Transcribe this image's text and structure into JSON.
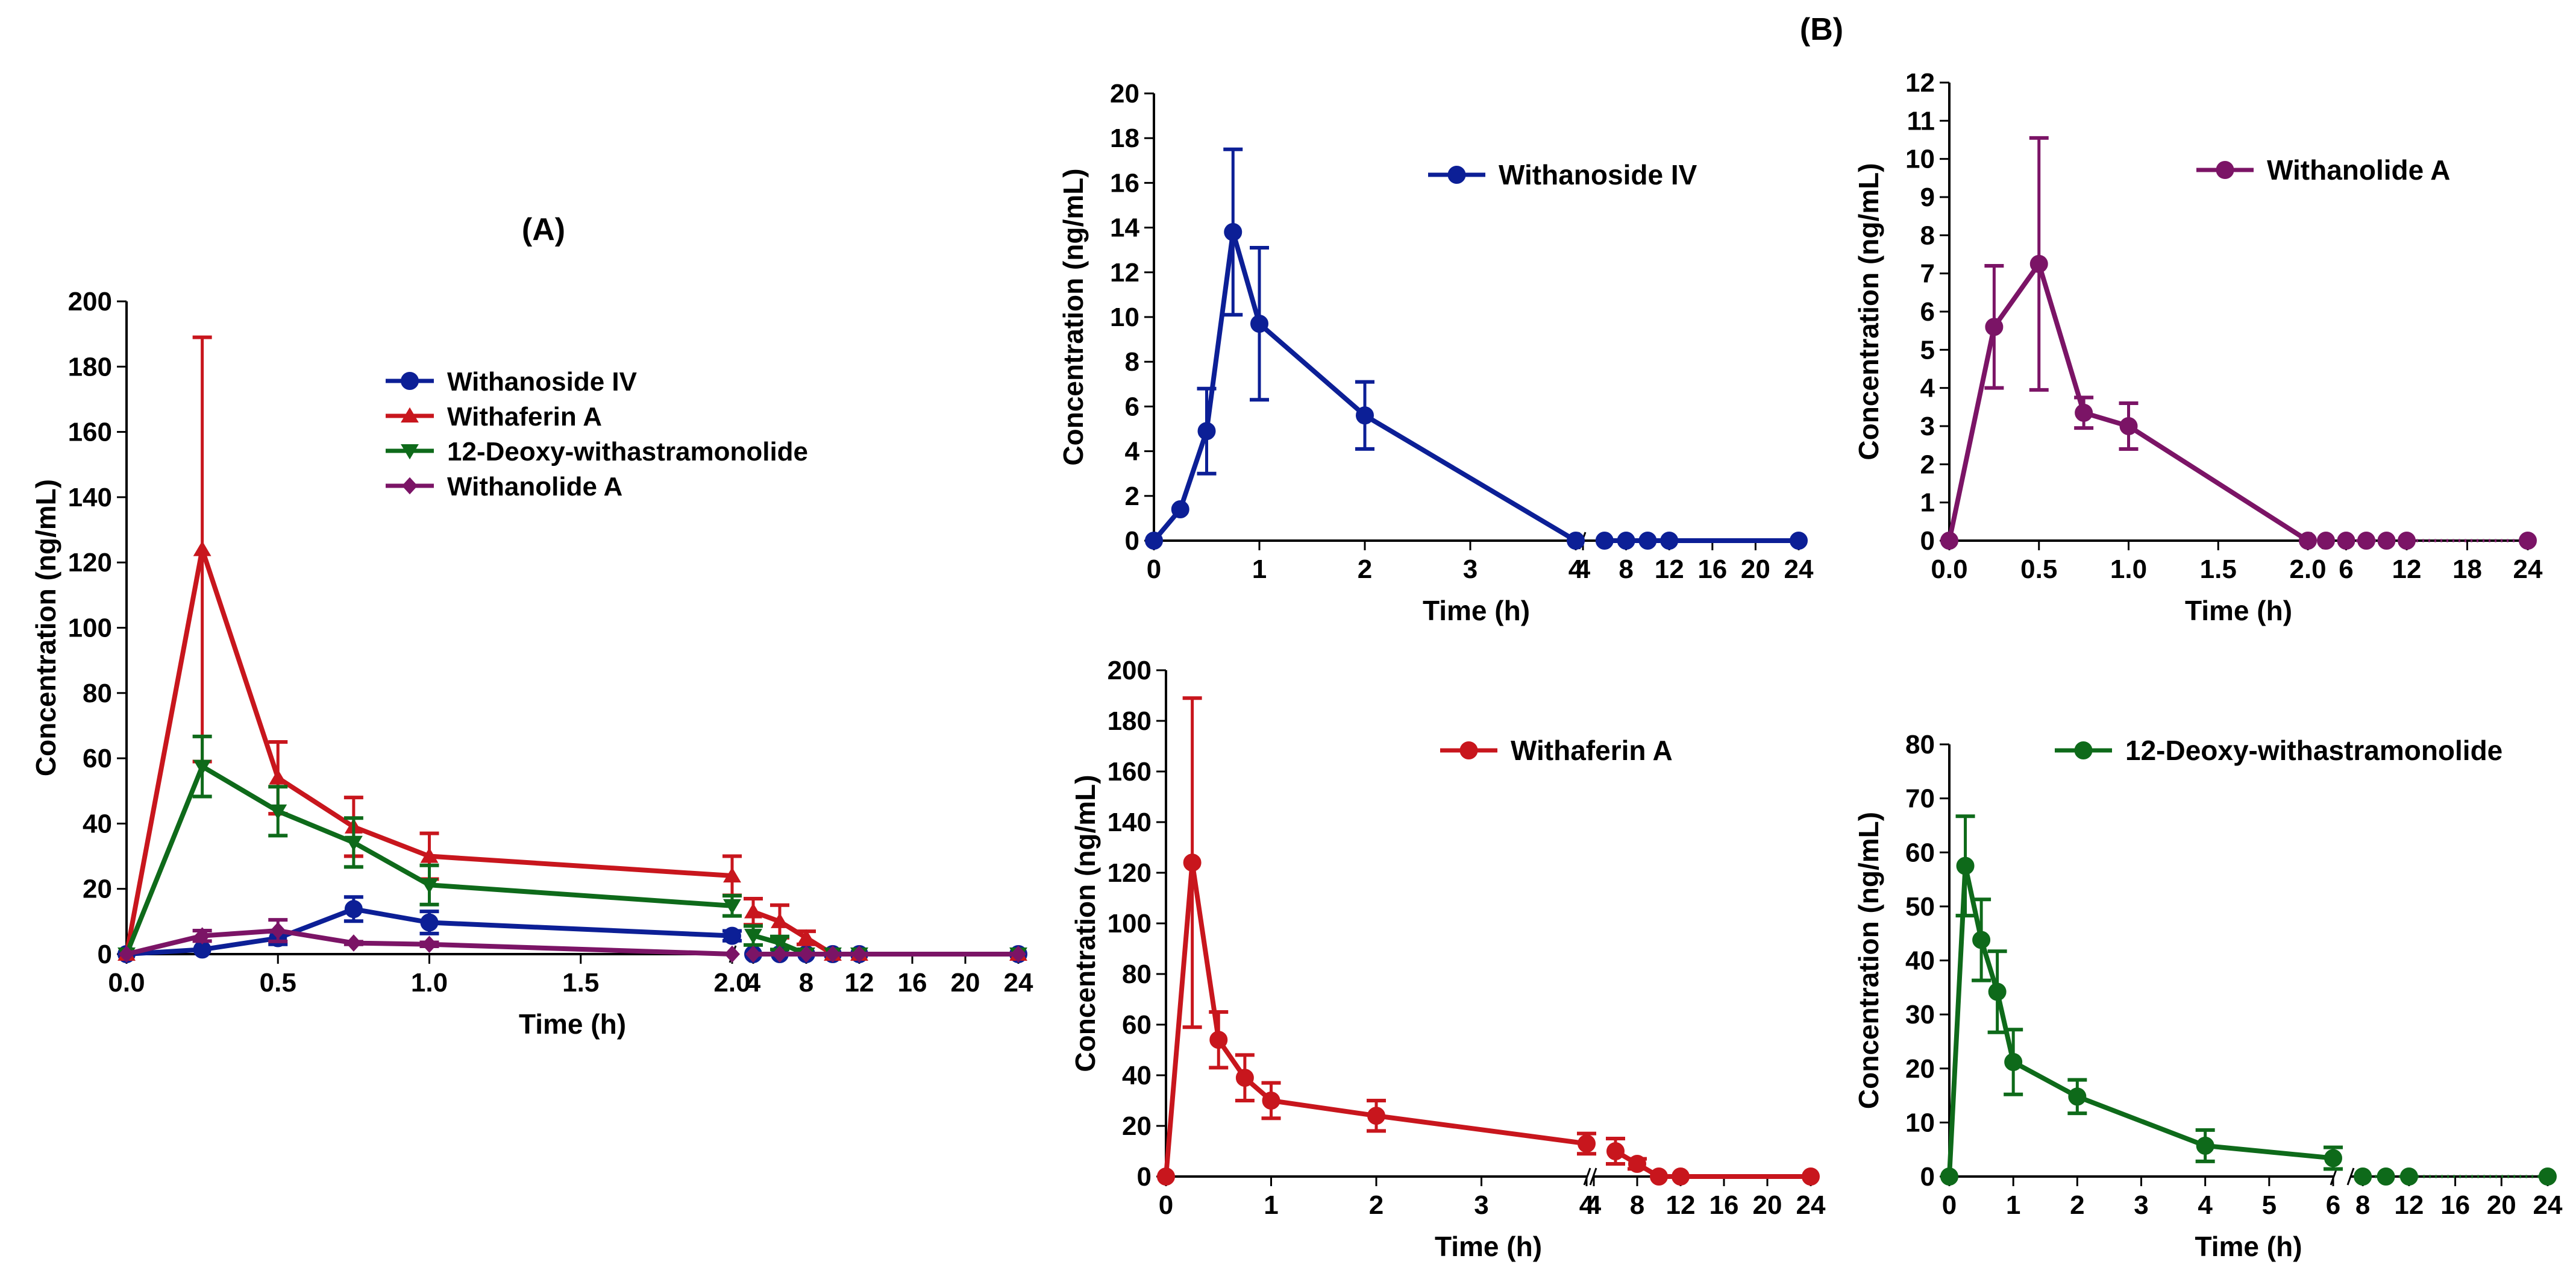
{
  "figure": {
    "label_A": "(A)",
    "label_B": "(B)"
  },
  "chart_data": [
    {
      "id": "A",
      "type": "line",
      "title": "(A)",
      "xlabel": "Time (h)",
      "ylabel": "Concentration (ng/mL)",
      "ylim": [
        0,
        200
      ],
      "yticks": [
        0,
        20,
        40,
        60,
        80,
        100,
        120,
        140,
        160,
        180,
        200
      ],
      "xticks_left": [
        "0.0",
        "0.5",
        "1.0",
        "1.5",
        "2.0"
      ],
      "xticks_right": [
        "4",
        "8",
        "12",
        "16",
        "20",
        "24"
      ],
      "legend_position": "upper-middle",
      "series": [
        {
          "name": "Withanoside IV",
          "color": "#0c1f96",
          "marker": "circle",
          "x": [
            0,
            0.25,
            0.5,
            0.75,
            1,
            2,
            4,
            6,
            8,
            10,
            12,
            24
          ],
          "y": [
            0,
            1.4,
            4.9,
            13.8,
            9.7,
            5.6,
            0,
            0,
            0,
            0,
            0,
            0
          ],
          "err": [
            0,
            0,
            1.9,
            3.7,
            3.4,
            1.5,
            0,
            0,
            0,
            0,
            0,
            0
          ]
        },
        {
          "name": "Withaferin A",
          "color": "#c8161d",
          "marker": "triangle",
          "x": [
            0,
            0.25,
            0.5,
            0.75,
            1,
            2,
            4,
            6,
            8,
            10,
            12,
            24
          ],
          "y": [
            0,
            124,
            54,
            39,
            30,
            24,
            13,
            10,
            5,
            0,
            0,
            0
          ],
          "err": [
            0,
            65,
            11,
            9,
            7,
            6,
            4,
            5,
            2,
            0,
            0,
            0
          ]
        },
        {
          "name": "12-Deoxy-withastramonolide",
          "color": "#0e6a1a",
          "marker": "triangle-down",
          "x": [
            0,
            0.25,
            0.5,
            0.75,
            1,
            2,
            4,
            6,
            8,
            10,
            12,
            24
          ],
          "y": [
            0,
            57.5,
            43.8,
            34.2,
            21.2,
            14.8,
            5.7,
            3.4,
            0,
            0,
            0,
            0
          ],
          "err": [
            0,
            9.2,
            7.5,
            7.5,
            6.0,
            3.1,
            2.9,
            2.0,
            0,
            0,
            0,
            0
          ]
        },
        {
          "name": "Withanolide A",
          "color": "#7b1466",
          "marker": "diamond",
          "x": [
            0,
            0.25,
            0.5,
            0.75,
            1,
            2,
            4,
            6,
            8,
            10,
            12,
            24
          ],
          "y": [
            0,
            5.6,
            7.2,
            3.4,
            3.0,
            0,
            0,
            0,
            0,
            0,
            0,
            0
          ],
          "err": [
            0,
            1.6,
            3.3,
            0.4,
            0.6,
            0,
            0,
            0,
            0,
            0,
            0,
            0
          ]
        }
      ]
    },
    {
      "id": "B1",
      "type": "line",
      "xlabel": "Time (h)",
      "ylabel": "Concentration (ng/mL)",
      "ylim": [
        0,
        20
      ],
      "yticks": [
        0,
        2,
        4,
        6,
        8,
        10,
        12,
        14,
        16,
        18,
        20
      ],
      "xticks_left": [
        "0",
        "1",
        "2",
        "3",
        "4"
      ],
      "xticks_right": [
        "4",
        "8",
        "12",
        "16",
        "20",
        "24"
      ],
      "legend_position": "top-right",
      "series": [
        {
          "name": "Withanoside IV",
          "color": "#0c1f96",
          "marker": "circle",
          "x": [
            0,
            0.25,
            0.5,
            0.75,
            1,
            2,
            4,
            6,
            8,
            10,
            12,
            24
          ],
          "y": [
            0,
            1.4,
            4.9,
            13.8,
            9.7,
            5.6,
            0,
            0,
            0,
            0,
            0,
            0
          ],
          "err": [
            0,
            0,
            1.9,
            3.7,
            3.4,
            1.5,
            0,
            0,
            0,
            0,
            0,
            0
          ]
        }
      ]
    },
    {
      "id": "B2",
      "type": "line",
      "xlabel": "Time (h)",
      "ylabel": "Concentration (ng/mL)",
      "ylim": [
        0,
        12
      ],
      "yticks": [
        0,
        1,
        2,
        3,
        4,
        5,
        6,
        7,
        8,
        9,
        10,
        11,
        12
      ],
      "xticks_left": [
        "0.0",
        "0.5",
        "1.0",
        "1.5",
        "2.0"
      ],
      "xticks_right": [
        "6",
        "12",
        "18",
        "24"
      ],
      "legend_position": "top-right",
      "series": [
        {
          "name": "Withanolide A",
          "color": "#7b1466",
          "marker": "circle",
          "x": [
            0,
            0.25,
            0.5,
            0.75,
            1,
            2,
            4,
            6,
            8,
            10,
            12,
            24
          ],
          "y": [
            0,
            5.6,
            7.25,
            3.35,
            3.0,
            0,
            0,
            0,
            0,
            0,
            0,
            0
          ],
          "err": [
            0,
            1.6,
            3.3,
            0.4,
            0.6,
            0,
            0,
            0,
            0,
            0,
            0,
            0
          ]
        }
      ]
    },
    {
      "id": "B3",
      "type": "line",
      "xlabel": "Time (h)",
      "ylabel": "Concentration (ng/mL)",
      "ylim": [
        0,
        200
      ],
      "yticks": [
        0,
        20,
        40,
        60,
        80,
        100,
        120,
        140,
        160,
        180,
        200
      ],
      "xticks_left": [
        "0",
        "1",
        "2",
        "3",
        "4"
      ],
      "xticks_right": [
        "4",
        "8",
        "12",
        "16",
        "20",
        "24"
      ],
      "legend_position": "top-right",
      "series": [
        {
          "name": "Withaferin A",
          "color": "#c8161d",
          "marker": "circle",
          "x": [
            0,
            0.25,
            0.5,
            0.75,
            1,
            2,
            4,
            6,
            8,
            10,
            12,
            24
          ],
          "y": [
            0,
            124,
            54,
            39,
            30,
            24,
            13,
            10,
            5,
            0,
            0,
            0
          ],
          "err": [
            0,
            65,
            11,
            9,
            7,
            6,
            4,
            5,
            2,
            0,
            0,
            0
          ]
        }
      ]
    },
    {
      "id": "B4",
      "type": "line",
      "xlabel": "Time (h)",
      "ylabel": "Concentration (ng/mL)",
      "ylim": [
        0,
        80
      ],
      "yticks": [
        0,
        10,
        20,
        30,
        40,
        50,
        60,
        70,
        80
      ],
      "xticks_left": [
        "0",
        "1",
        "2",
        "3",
        "4",
        "5",
        "6"
      ],
      "xticks_right": [
        "8",
        "12",
        "16",
        "20",
        "24"
      ],
      "legend_position": "top-right",
      "series": [
        {
          "name": "12-Deoxy-withastramonolide",
          "color": "#0e6a1a",
          "marker": "circle",
          "x": [
            0,
            0.25,
            0.5,
            0.75,
            1,
            2,
            4,
            6,
            8,
            10,
            12,
            24
          ],
          "y": [
            0,
            57.5,
            43.8,
            34.2,
            21.2,
            14.8,
            5.7,
            3.4,
            0,
            0,
            0,
            0
          ],
          "err": [
            0,
            9.2,
            7.5,
            7.5,
            6.0,
            3.1,
            2.9,
            2.0,
            0,
            0,
            0,
            0
          ]
        }
      ]
    }
  ]
}
